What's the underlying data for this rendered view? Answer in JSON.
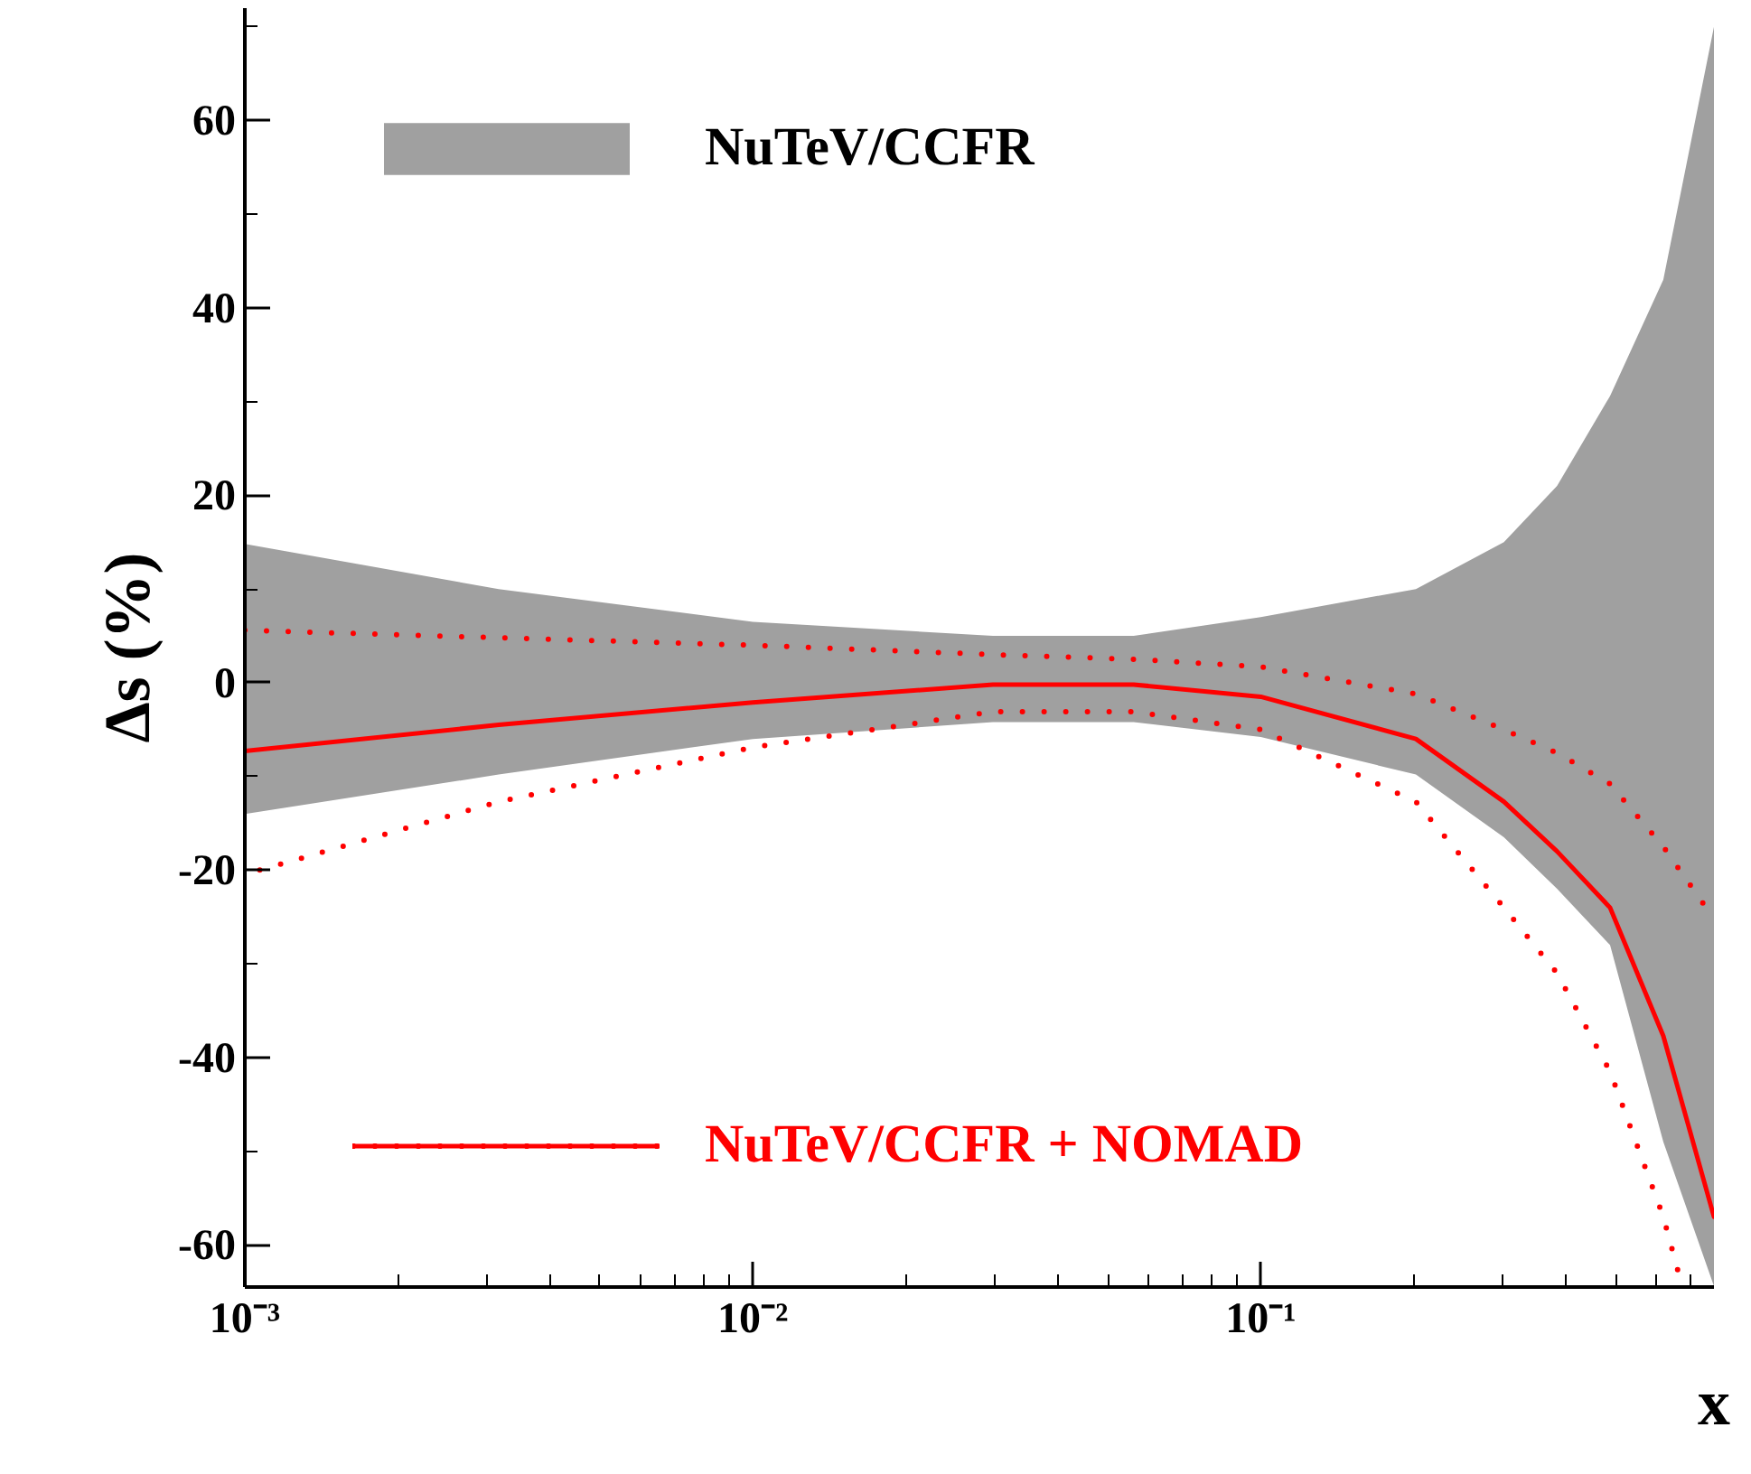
{
  "chart_data": {
    "type": "line",
    "xlabel": "x",
    "ylabel": "Δs (%)",
    "log": "x",
    "grid": false,
    "legend": "left",
    "xlim": [
      0.001,
      0.78
    ],
    "ylim": [
      -64.5,
      72
    ],
    "xticks": [
      {
        "value": 0.001,
        "label": "10⁻³"
      },
      {
        "value": 0.002,
        "label": null
      },
      {
        "value": 0.003,
        "label": null
      },
      {
        "value": 0.004,
        "label": null
      },
      {
        "value": 0.005,
        "label": null
      },
      {
        "value": 0.006,
        "label": null
      },
      {
        "value": 0.007,
        "label": null
      },
      {
        "value": 0.008,
        "label": null
      },
      {
        "value": 0.009,
        "label": null
      },
      {
        "value": 0.01,
        "label": "10⁻²"
      },
      {
        "value": 0.02,
        "label": null
      },
      {
        "value": 0.03,
        "label": null
      },
      {
        "value": 0.04,
        "label": null
      },
      {
        "value": 0.05,
        "label": null
      },
      {
        "value": 0.06,
        "label": null
      },
      {
        "value": 0.07,
        "label": null
      },
      {
        "value": 0.08,
        "label": null
      },
      {
        "value": 0.09,
        "label": null
      },
      {
        "value": 0.1,
        "label": "10⁻¹"
      },
      {
        "value": 0.2,
        "label": null
      },
      {
        "value": 0.3,
        "label": null
      },
      {
        "value": 0.4,
        "label": null
      },
      {
        "value": 0.5,
        "label": null
      },
      {
        "value": 0.6,
        "label": null
      },
      {
        "value": 0.7,
        "label": null
      }
    ],
    "yticks": [
      -60,
      {
        "value": -50,
        "label": null
      },
      -40,
      {
        "value": -30,
        "label": null
      },
      -20,
      {
        "value": -10,
        "label": null
      },
      0,
      {
        "value": 10,
        "label": null
      },
      20,
      {
        "value": 30,
        "label": null
      },
      40,
      {
        "value": 50,
        "label": null
      },
      60,
      {
        "value": 70,
        "label": null
      }
    ],
    "series": [
      {
        "name": "NuTeV/CCFR",
        "color": "#a0a0a0",
        "x": [
          0.001,
          0.00316,
          0.01,
          0.0297,
          0.0562,
          0.1,
          0.202,
          0.301,
          0.383,
          0.487,
          0.62,
          0.78
        ],
        "values": [
          null,
          null,
          null,
          null,
          null,
          null,
          null,
          null,
          null,
          null,
          null,
          null
        ],
        "upper": [
          14.8,
          10,
          6.5,
          5,
          5,
          7,
          10,
          15,
          21,
          30.6,
          43,
          70
        ],
        "lower": [
          -14,
          -9.8,
          -6,
          -4.2,
          -4.2,
          -5.8,
          -9.8,
          -16.5,
          -22,
          -28,
          -49,
          -64.4
        ]
      },
      {
        "name": "NuTeV/CCFR + NOMAD",
        "color": "#ff0000",
        "line_style": "solid",
        "x": [
          0.001,
          0.00316,
          0.01,
          0.0297,
          0.0562,
          0.1,
          0.202,
          0.301,
          0.383,
          0.487,
          0.62,
          0.78
        ],
        "values": [
          -7.3,
          -4.5,
          -2.1,
          -0.2,
          -0.2,
          -1.5,
          -6,
          -12.7,
          -18,
          -24,
          -37.7,
          -57
        ]
      },
      {
        "color": "#ff0000",
        "line_style": "dotted",
        "x": [
          0.001,
          0.00316,
          0.01,
          0.0297,
          0.0562,
          0.1,
          0.202,
          0.301,
          0.383,
          0.487,
          0.62,
          0.78
        ],
        "values": [
          5.6,
          4.8,
          4,
          3,
          2.5,
          1.7,
          -1.2,
          -5,
          -7.5,
          -10.8,
          -17.5,
          -25.2
        ]
      },
      {
        "color": "#ff0000",
        "line_style": "dotted",
        "x": [
          0.00107,
          0.00316,
          0.01,
          0.0297,
          0.0562,
          0.1,
          0.202,
          0.301,
          0.383,
          0.487,
          0.62,
          0.675
        ],
        "values": [
          -20,
          -12.7,
          -6.9,
          -3.1,
          -3.1,
          -5,
          -12.7,
          -24,
          -31,
          -41.5,
          -57,
          -64.4
        ]
      }
    ]
  }
}
